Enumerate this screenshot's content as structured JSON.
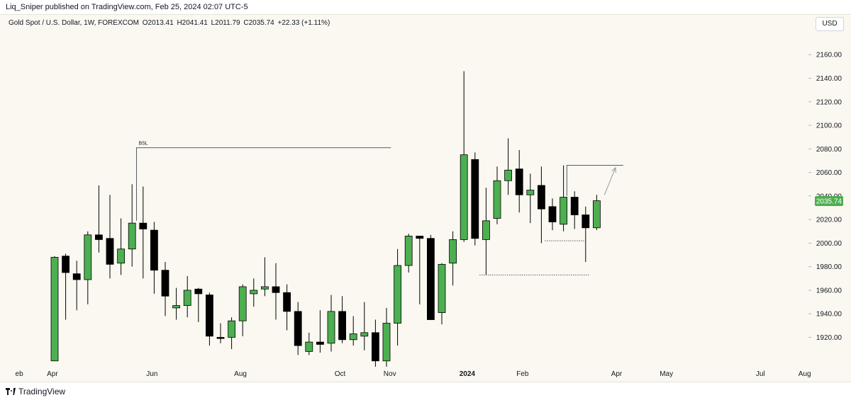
{
  "header": {
    "published_text": "Liq_Sniper published on TradingView.com, Feb 25, 2024 02:07 UTC-5"
  },
  "legend": {
    "symbol": "Gold Spot / U.S. Dollar, 1W, FOREXCOM",
    "open": "O2013.41",
    "high": "H2041.41",
    "low": "L2011.79",
    "close": "C2035.74",
    "change": "+22.33 (+1.11%)"
  },
  "currency_button": "USD",
  "footer": {
    "brand": "TradingView"
  },
  "colors": {
    "up": "#4caf50",
    "down": "#000000",
    "background": "#fbf8f1",
    "price_tag": "#4caf50"
  },
  "chart_data": {
    "type": "candlestick",
    "title": "",
    "ylabel": "",
    "ylim": [
      1900,
      2175
    ],
    "y_ticks": [
      "1920.00",
      "1940.00",
      "1960.00",
      "1980.00",
      "2000.00",
      "2020.00",
      "2040.00",
      "2060.00",
      "2080.00",
      "2100.00",
      "2120.00",
      "2140.00",
      "2160.00"
    ],
    "x_ticks": [
      {
        "label": "eb",
        "x": 1
      },
      {
        "label": "Apr",
        "x": 4
      },
      {
        "label": "Jun",
        "x": 13
      },
      {
        "label": "Aug",
        "x": 21
      },
      {
        "label": "Oct",
        "x": 30
      },
      {
        "label": "Nov",
        "x": 34.5
      },
      {
        "label": "2024",
        "x": 41.5
      },
      {
        "label": "Feb",
        "x": 46.5
      },
      {
        "label": "Apr",
        "x": 55
      },
      {
        "label": "May",
        "x": 59.5
      },
      {
        "label": "Jul",
        "x": 68
      },
      {
        "label": "Aug",
        "x": 72
      }
    ],
    "last_price_label": "2035.74",
    "last_price": 2035.74,
    "candles": [
      {
        "o": 1900,
        "h": 1989,
        "l": 1900,
        "c": 1988
      },
      {
        "o": 1989,
        "h": 1991,
        "l": 1935,
        "c": 1975
      },
      {
        "o": 1974,
        "h": 1985,
        "l": 1943,
        "c": 1969
      },
      {
        "o": 1969,
        "h": 2010,
        "l": 1948,
        "c": 2007
      },
      {
        "o": 2007,
        "h": 2049,
        "l": 1992,
        "c": 2003
      },
      {
        "o": 2004,
        "h": 2041,
        "l": 1970,
        "c": 1982
      },
      {
        "o": 1983,
        "h": 2021,
        "l": 1973,
        "c": 1995
      },
      {
        "o": 1995,
        "h": 2050,
        "l": 1980,
        "c": 2017
      },
      {
        "o": 2017,
        "h": 2048,
        "l": 1970,
        "c": 2012
      },
      {
        "o": 2011,
        "h": 2018,
        "l": 1957,
        "c": 1977
      },
      {
        "o": 1977,
        "h": 1984,
        "l": 1938,
        "c": 1955
      },
      {
        "o": 1945,
        "h": 1962,
        "l": 1935,
        "c": 1947
      },
      {
        "o": 1947,
        "h": 1972,
        "l": 1937,
        "c": 1960
      },
      {
        "o": 1961,
        "h": 1962,
        "l": 1933,
        "c": 1957
      },
      {
        "o": 1956,
        "h": 1958,
        "l": 1913,
        "c": 1921
      },
      {
        "o": 1920,
        "h": 1932,
        "l": 1915,
        "c": 1919
      },
      {
        "o": 1920,
        "h": 1937,
        "l": 1910,
        "c": 1934
      },
      {
        "o": 1934,
        "h": 1965,
        "l": 1921,
        "c": 1963
      },
      {
        "o": 1957,
        "h": 1970,
        "l": 1946,
        "c": 1960
      },
      {
        "o": 1961,
        "h": 1988,
        "l": 1955,
        "c": 1963
      },
      {
        "o": 1963,
        "h": 1983,
        "l": 1935,
        "c": 1958
      },
      {
        "o": 1958,
        "h": 1965,
        "l": 1926,
        "c": 1942
      },
      {
        "o": 1942,
        "h": 1950,
        "l": 1905,
        "c": 1913
      },
      {
        "o": 1908,
        "h": 1924,
        "l": 1905,
        "c": 1916
      },
      {
        "o": 1916,
        "h": 1943,
        "l": 1907,
        "c": 1914
      },
      {
        "o": 1915,
        "h": 1956,
        "l": 1908,
        "c": 1942
      },
      {
        "o": 1942,
        "h": 1955,
        "l": 1915,
        "c": 1918
      },
      {
        "o": 1918,
        "h": 1938,
        "l": 1913,
        "c": 1923
      },
      {
        "o": 1921,
        "h": 1950,
        "l": 1909,
        "c": 1924
      },
      {
        "o": 1924,
        "h": 1935,
        "l": 1895,
        "c": 1900
      },
      {
        "o": 1900,
        "h": 1945,
        "l": 1893,
        "c": 1932
      },
      {
        "o": 1932,
        "h": 1995,
        "l": 1913,
        "c": 1981
      },
      {
        "o": 1981,
        "h": 2008,
        "l": 1975,
        "c": 2006
      },
      {
        "o": 2006,
        "h": 2006,
        "l": 1948,
        "c": 2004
      },
      {
        "o": 2004,
        "h": 2007,
        "l": 1936,
        "c": 1935
      },
      {
        "o": 1941,
        "h": 1983,
        "l": 1931,
        "c": 1982
      },
      {
        "o": 1983,
        "h": 2010,
        "l": 1964,
        "c": 2003
      },
      {
        "o": 2003,
        "h": 2146,
        "l": 2001,
        "c": 2075
      },
      {
        "o": 2071,
        "h": 2077,
        "l": 1998,
        "c": 2004
      },
      {
        "o": 2003,
        "h": 2047,
        "l": 1973,
        "c": 2019
      },
      {
        "o": 2021,
        "h": 2065,
        "l": 2016,
        "c": 2053
      },
      {
        "o": 2053,
        "h": 2089,
        "l": 2041,
        "c": 2062
      },
      {
        "o": 2063,
        "h": 2079,
        "l": 2026,
        "c": 2041
      },
      {
        "o": 2041,
        "h": 2059,
        "l": 2017,
        "c": 2045
      },
      {
        "o": 2049,
        "h": 2065,
        "l": 2000,
        "c": 2029
      },
      {
        "o": 2031,
        "h": 2038,
        "l": 2011,
        "c": 2018
      },
      {
        "o": 2016,
        "h": 2066,
        "l": 2010,
        "c": 2039
      },
      {
        "o": 2039,
        "h": 2044,
        "l": 2012,
        "c": 2024
      },
      {
        "o": 2024,
        "h": 2031,
        "l": 1984,
        "c": 2013
      },
      {
        "o": 2013,
        "h": 2041,
        "l": 2011,
        "c": 2036
      }
    ],
    "annotations": [
      {
        "type": "bracket-line",
        "label": "BSL",
        "x_start": 7.4,
        "x_end": 30.4,
        "y": 2081,
        "y_down_to": 2019
      },
      {
        "type": "dotted-line",
        "x_start": 38.4,
        "x_end": 48.4,
        "y": 1973
      },
      {
        "type": "dotted-line",
        "x_start": 44.3,
        "x_end": 47.9,
        "y": 2002
      },
      {
        "type": "bracket-line",
        "label": "",
        "x_start": 46.3,
        "x_end": 51.4,
        "y": 2066,
        "y_down_to": 2040
      },
      {
        "type": "arrow",
        "x_start": 49.7,
        "y_start": 2041,
        "x_end": 50.7,
        "y_end": 2064
      }
    ]
  }
}
